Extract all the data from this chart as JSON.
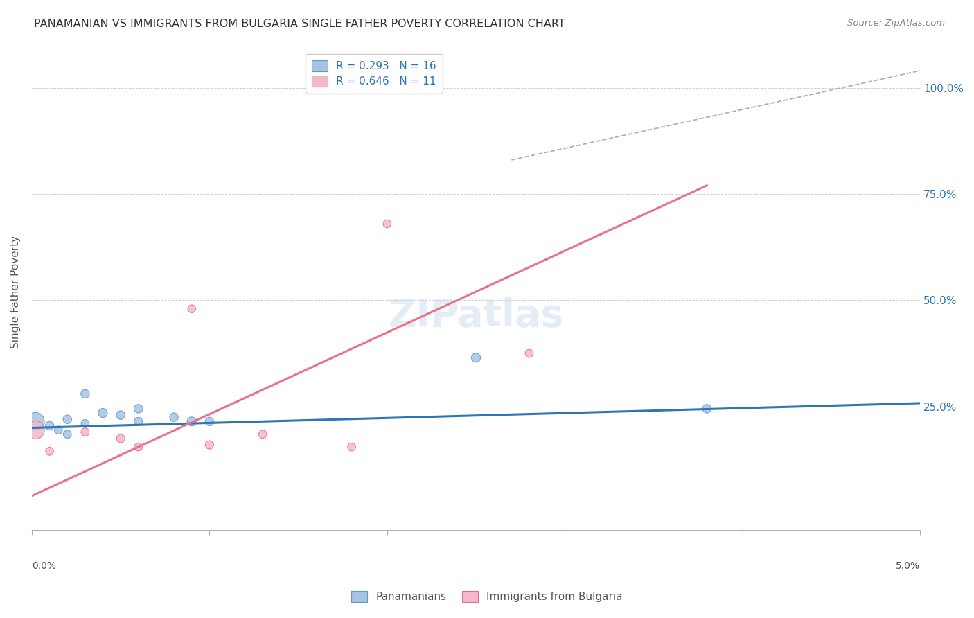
{
  "title": "PANAMANIAN VS IMMIGRANTS FROM BULGARIA SINGLE FATHER POVERTY CORRELATION CHART",
  "source": "Source: ZipAtlas.com",
  "ylabel": "Single Father Poverty",
  "y_ticks": [
    0.0,
    0.25,
    0.5,
    0.75,
    1.0
  ],
  "y_tick_labels": [
    "",
    "25.0%",
    "50.0%",
    "75.0%",
    "100.0%"
  ],
  "x_min": 0.0,
  "x_max": 0.05,
  "y_min": -0.04,
  "y_max": 1.08,
  "panamanian_color": "#a8c4e0",
  "panamanian_edge_color": "#5b9bd5",
  "bulgaria_color": "#f4b8c8",
  "bulgaria_edge_color": "#e07090",
  "line_blue": "#2e75b6",
  "line_pink": "#e8728a",
  "line_diagonal_color": "#b0b0b0",
  "legend_R_color": "#2e75b6",
  "R_panama": 0.293,
  "N_panama": 16,
  "R_bulgaria": 0.646,
  "N_bulgaria": 11,
  "watermark": "ZIPatlas",
  "panamanian_x": [
    0.0002,
    0.001,
    0.0015,
    0.002,
    0.002,
    0.003,
    0.003,
    0.004,
    0.005,
    0.006,
    0.006,
    0.008,
    0.009,
    0.01,
    0.025,
    0.038
  ],
  "panamanian_y": [
    0.215,
    0.205,
    0.195,
    0.22,
    0.185,
    0.28,
    0.21,
    0.235,
    0.23,
    0.245,
    0.215,
    0.225,
    0.215,
    0.215,
    0.365,
    0.245
  ],
  "panamanian_size": [
    350,
    80,
    70,
    80,
    70,
    80,
    70,
    90,
    80,
    80,
    75,
    80,
    90,
    80,
    90,
    80
  ],
  "bulgaria_x": [
    0.0002,
    0.001,
    0.003,
    0.005,
    0.006,
    0.009,
    0.01,
    0.013,
    0.018,
    0.02,
    0.028
  ],
  "bulgaria_y": [
    0.195,
    0.145,
    0.19,
    0.175,
    0.155,
    0.48,
    0.16,
    0.185,
    0.155,
    0.68,
    0.375
  ],
  "bulgaria_size": [
    350,
    70,
    70,
    75,
    70,
    70,
    75,
    70,
    70,
    70,
    70
  ],
  "pan_line_x": [
    0.0,
    0.05
  ],
  "pan_line_y": [
    0.2,
    0.258
  ],
  "bul_line_x": [
    0.0,
    0.038
  ],
  "bul_line_y": [
    0.04,
    0.77
  ],
  "diag_line_x": [
    0.027,
    0.05
  ],
  "diag_line_y": [
    0.83,
    1.04
  ]
}
